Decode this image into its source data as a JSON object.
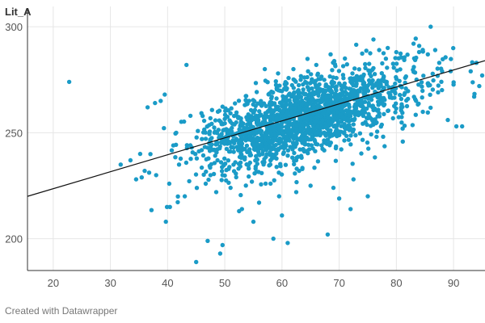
{
  "chart_data": {
    "type": "scatter",
    "ylabel": "Lit_A",
    "xlabel": "",
    "xlim": [
      15.5,
      95.5
    ],
    "ylim": [
      185,
      305
    ],
    "x_ticks": [
      20,
      30,
      40,
      50,
      60,
      70,
      80,
      90
    ],
    "y_ticks": [
      200,
      250,
      300
    ],
    "grid": true,
    "point_color": "#1a9bc7",
    "trendline": {
      "color": "#111111",
      "start": [
        15.5,
        220
      ],
      "end": [
        95.5,
        284
      ]
    },
    "series": [
      {
        "generated_summary": false,
        "outliers": [
          [
            22.8,
            274
          ],
          [
            31.8,
            235
          ],
          [
            34.5,
            228
          ],
          [
            35.2,
            240
          ],
          [
            36.5,
            262
          ],
          [
            37.8,
            264
          ],
          [
            38.8,
            265
          ],
          [
            39.5,
            268
          ],
          [
            39.7,
            208
          ],
          [
            39.9,
            215
          ],
          [
            40.4,
            215
          ],
          [
            42.0,
            235
          ],
          [
            43.0,
            220
          ],
          [
            43.3,
            282
          ],
          [
            45.0,
            189
          ],
          [
            47.0,
            199
          ],
          [
            48.5,
            222
          ],
          [
            49.2,
            193
          ],
          [
            49.6,
            197
          ],
          [
            53.0,
            214
          ],
          [
            56.0,
            217
          ],
          [
            58.0,
            226
          ],
          [
            58.5,
            200
          ],
          [
            60.0,
            211
          ],
          [
            61.0,
            198
          ],
          [
            68.0,
            202
          ],
          [
            70.0,
            219
          ],
          [
            72.0,
            214
          ],
          [
            75.0,
            220
          ],
          [
            76.0,
            294
          ],
          [
            77.0,
            289
          ],
          [
            80.0,
            288
          ],
          [
            84.0,
            291
          ],
          [
            86.0,
            300
          ],
          [
            85.5,
            287
          ],
          [
            88.0,
            279
          ],
          [
            89.0,
            256
          ],
          [
            90.5,
            253
          ],
          [
            91.5,
            253
          ],
          [
            93.0,
            279
          ],
          [
            94.0,
            283
          ],
          [
            95.0,
            277
          ],
          [
            94.5,
            272
          ],
          [
            83.0,
            292
          ],
          [
            86.8,
            289
          ],
          [
            87.5,
            283
          ],
          [
            78.5,
            290
          ],
          [
            65.0,
            225
          ],
          [
            63.0,
            232
          ],
          [
            52.0,
            229
          ],
          [
            51.0,
            224
          ],
          [
            47.5,
            230
          ],
          [
            46.0,
            247
          ],
          [
            44.0,
            258
          ],
          [
            41.5,
            250
          ],
          [
            41.0,
            244
          ],
          [
            38.0,
            230
          ],
          [
            36.0,
            232
          ],
          [
            33.5,
            237
          ],
          [
            57.0,
            280
          ],
          [
            62.0,
            280
          ],
          [
            66.0,
            282
          ],
          [
            68.5,
            287
          ],
          [
            71.0,
            285
          ],
          [
            55.0,
            208
          ],
          [
            52.5,
            213
          ],
          [
            59.5,
            220
          ],
          [
            62.5,
            222
          ],
          [
            69.0,
            224
          ],
          [
            72.5,
            228
          ]
        ],
        "cluster": {
          "count": 1850,
          "center": [
            64.0,
            257.0
          ],
          "slope": 0.8,
          "spread_x": 9.5,
          "spread_y": 9.0,
          "seed": 7
        }
      }
    ]
  },
  "footer": {
    "credit": "Created with Datawrapper"
  }
}
